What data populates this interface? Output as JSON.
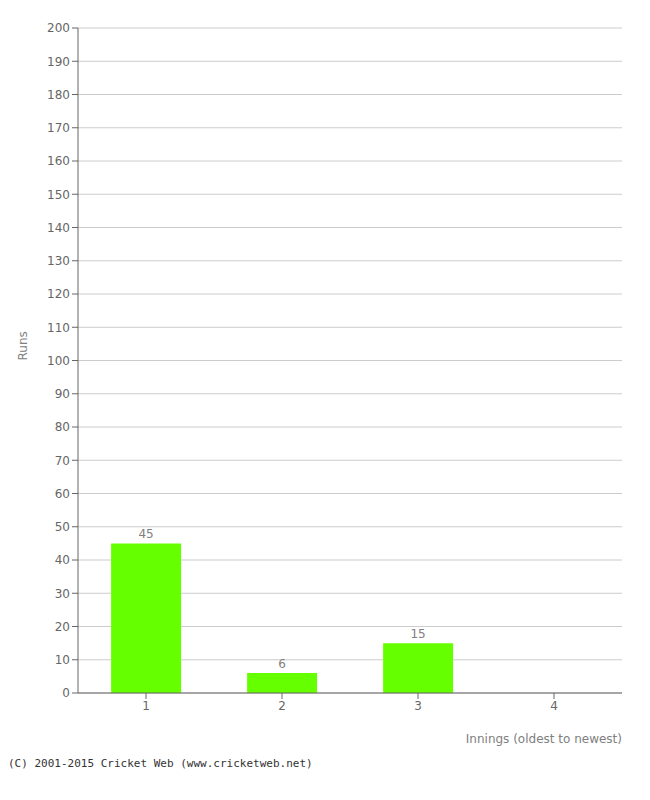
{
  "chart_data": {
    "type": "bar",
    "categories": [
      "1",
      "2",
      "3",
      "4"
    ],
    "values": [
      45,
      6,
      15,
      0
    ],
    "color": "#66ff00",
    "xlabel": "Innings (oldest to newest)",
    "ylabel": "Runs",
    "ylim": [
      0,
      200
    ],
    "yticks": [
      0,
      10,
      20,
      30,
      40,
      50,
      60,
      70,
      80,
      90,
      100,
      110,
      120,
      130,
      140,
      150,
      160,
      170,
      180,
      190,
      200
    ],
    "grid": true,
    "data_labels": true,
    "annotations": [
      "(C) 2001-2015 Cricket Web (www.cricketweb.net)"
    ]
  }
}
